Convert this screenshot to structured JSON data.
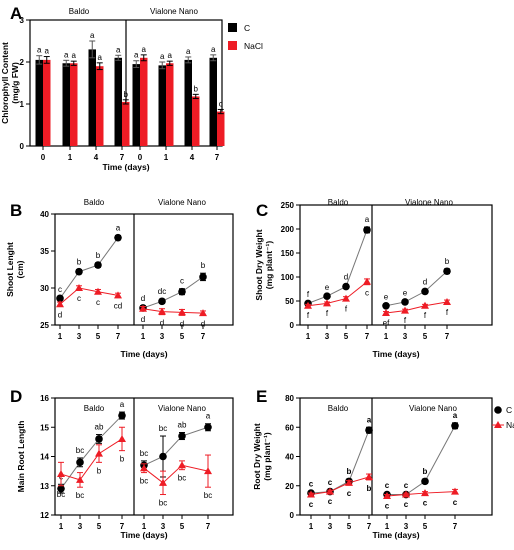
{
  "chart_data": [
    {
      "panel": "A",
      "type": "bar",
      "ylabel": "Chlorophyll Content (mg/g FW)",
      "ylabel_lines": [
        "Chlorophyll Content",
        "(mg/g FW)"
      ],
      "xlabel": "Time (days)",
      "groups": [
        "Baldo",
        "Vialone Nano"
      ],
      "categories": [
        "0",
        "1",
        "4",
        "7"
      ],
      "ylim": [
        0,
        3
      ],
      "yticks": [
        0,
        1,
        2,
        3
      ],
      "legend": {
        "position": "right",
        "entries": [
          "C",
          "NaCl"
        ]
      },
      "series": [
        {
          "name": "C",
          "color": "#000000",
          "values": [
            [
              2.05,
              1.97,
              2.3,
              2.1
            ],
            [
              1.95,
              1.92,
              2.05,
              2.1
            ]
          ],
          "errors": [
            [
              0.1,
              0.07,
              0.2,
              0.06
            ],
            [
              0.08,
              0.08,
              0.07,
              0.07
            ]
          ],
          "letters": [
            [
              "a",
              "a",
              "a",
              "a"
            ],
            [
              "a",
              "a",
              "a",
              "a"
            ]
          ]
        },
        {
          "name": "NaCl",
          "color": "#ee1c25",
          "values": [
            [
              2.05,
              1.97,
              1.9,
              1.05
            ],
            [
              2.1,
              1.97,
              1.18,
              0.82
            ]
          ],
          "errors": [
            [
              0.08,
              0.05,
              0.08,
              0.05
            ],
            [
              0.07,
              0.05,
              0.05,
              0.05
            ]
          ],
          "letters": [
            [
              "a",
              "a",
              "a",
              "b"
            ],
            [
              "a",
              "a",
              "b",
              "c"
            ]
          ]
        }
      ]
    },
    {
      "panel": "B",
      "type": "line",
      "ylabel": "Shoot Lenght (cm)",
      "ylabel_lines": [
        "Shoot Lenght",
        "(cm)"
      ],
      "xlabel": "Time (days)",
      "groups": [
        "Baldo",
        "Vialone  Nano"
      ],
      "x": [
        "1",
        "3",
        "5",
        "7"
      ],
      "ylim": [
        25,
        40
      ],
      "yticks": [
        25,
        30,
        35,
        40
      ],
      "series": [
        {
          "name": "C",
          "values": [
            [
              28.6,
              32.2,
              33.1,
              36.8
            ],
            [
              27.3,
              28.2,
              29.5,
              31.5
            ]
          ],
          "errors": [
            [
              0.2,
              0.3,
              0.3,
              0.3
            ],
            [
              0.3,
              0.3,
              0.4,
              0.5
            ]
          ],
          "letters": [
            [
              "c",
              "b",
              "b",
              "a"
            ],
            [
              "d",
              "dc",
              "c",
              "b"
            ]
          ]
        },
        {
          "name": "NaCl",
          "values": [
            [
              27.8,
              30.0,
              29.5,
              29.0
            ],
            [
              27.2,
              26.8,
              26.7,
              26.6
            ]
          ],
          "errors": [
            [
              0.3,
              0.3,
              0.3,
              0.3
            ],
            [
              0.3,
              0.4,
              0.4,
              0.3
            ]
          ],
          "letters": [
            [
              "d",
              "c",
              "c",
              "cd"
            ],
            [
              "d",
              "d",
              "d",
              "d"
            ]
          ]
        }
      ]
    },
    {
      "panel": "C",
      "type": "line",
      "ylabel": "Shoot Dry Weight (mg plant⁻¹)",
      "ylabel_lines": [
        "Shoot Dry Weight",
        "(mg plant⁻¹)"
      ],
      "xlabel": "Time (days)",
      "groups": [
        "Baldo",
        "Vialone Nano"
      ],
      "x": [
        "1",
        "3",
        "5",
        "7"
      ],
      "ylim": [
        0,
        250
      ],
      "yticks": [
        0,
        50,
        100,
        150,
        200,
        250
      ],
      "series": [
        {
          "name": "C",
          "values": [
            [
              45,
              60,
              80,
              198
            ],
            [
              40,
              48,
              70,
              112
            ]
          ],
          "errors": [
            [
              3,
              3,
              4,
              6
            ],
            [
              3,
              3,
              4,
              5
            ]
          ],
          "letters": [
            [
              "f",
              "e",
              "d",
              "a"
            ],
            [
              "e",
              "e",
              "d",
              "b"
            ]
          ]
        },
        {
          "name": "NaCl",
          "values": [
            [
              40,
              45,
              55,
              90
            ],
            [
              25,
              30,
              40,
              48
            ]
          ],
          "errors": [
            [
              3,
              3,
              4,
              6
            ],
            [
              3,
              3,
              3,
              4
            ]
          ],
          "letters": [
            [
              "f",
              "f",
              "f",
              "c"
            ],
            [
              "ef",
              "f",
              "f",
              "f"
            ]
          ]
        }
      ]
    },
    {
      "panel": "D",
      "type": "line",
      "ylabel": "Main Root Length",
      "xlabel": "Time (days)",
      "groups": [
        "Baldo",
        "Vialone Nano"
      ],
      "x": [
        "1",
        "3",
        "5",
        "7"
      ],
      "ylim": [
        12,
        16
      ],
      "yticks": [
        12,
        13,
        14,
        15,
        16
      ],
      "series": [
        {
          "name": "C",
          "values": [
            [
              12.9,
              13.8,
              14.6,
              15.4
            ],
            [
              13.7,
              14.0,
              14.7,
              15.0
            ]
          ],
          "errors": [
            [
              0.15,
              0.15,
              0.15,
              0.12
            ],
            [
              0.15,
              0.7,
              0.12,
              0.12
            ]
          ],
          "letters": [
            [
              "c",
              "bc",
              "ab",
              "a"
            ],
            [
              "bc",
              "bc",
              "ab",
              "a"
            ]
          ]
        },
        {
          "name": "NaCl",
          "values": [
            [
              13.4,
              13.2,
              14.1,
              14.6
            ],
            [
              13.6,
              13.1,
              13.7,
              13.5
            ]
          ],
          "errors": [
            [
              0.4,
              0.25,
              0.3,
              0.4
            ],
            [
              0.15,
              0.4,
              0.15,
              0.55
            ]
          ],
          "letters": [
            [
              "bc",
              "bc",
              "b",
              "b"
            ],
            [
              "bc",
              "bc",
              "bc",
              "bc"
            ]
          ]
        }
      ]
    },
    {
      "panel": "E",
      "type": "line",
      "ylabel": "Root Dry Weight (mg plant⁻¹)",
      "ylabel_lines": [
        "Root Dry Weight",
        "(mg plant⁻¹)"
      ],
      "xlabel": "Time (days)",
      "groups": [
        "Baldo",
        "Vialone Nano"
      ],
      "x": [
        "1",
        "3",
        "5",
        "7"
      ],
      "ylim": [
        0,
        80
      ],
      "yticks": [
        0,
        20,
        40,
        60,
        80
      ],
      "legend": {
        "position": "right",
        "entries": [
          "C",
          "NaCl"
        ]
      },
      "series": [
        {
          "name": "C",
          "values": [
            [
              15,
              16,
              23,
              58
            ],
            [
              14,
              14,
              23,
              61
            ]
          ],
          "errors": [
            [
              1,
              1,
              1.5,
              2
            ],
            [
              1,
              1,
              1.5,
              2
            ]
          ],
          "letters": [
            [
              "c",
              "c",
              "b",
              "a"
            ],
            [
              "c",
              "c",
              "b",
              "a"
            ]
          ]
        },
        {
          "name": "NaCl",
          "values": [
            [
              14,
              16,
              22,
              26
            ],
            [
              13,
              14,
              15,
              16
            ]
          ],
          "errors": [
            [
              1,
              1,
              1.5,
              2
            ],
            [
              1,
              1,
              1,
              1.5
            ]
          ],
          "letters": [
            [
              "c",
              "c",
              "c",
              "b"
            ],
            [
              "c",
              "c",
              "c",
              "c"
            ]
          ]
        }
      ]
    }
  ],
  "colors": {
    "control": "#000000",
    "nacl": "#ee1c25",
    "line_c": "#777777"
  }
}
